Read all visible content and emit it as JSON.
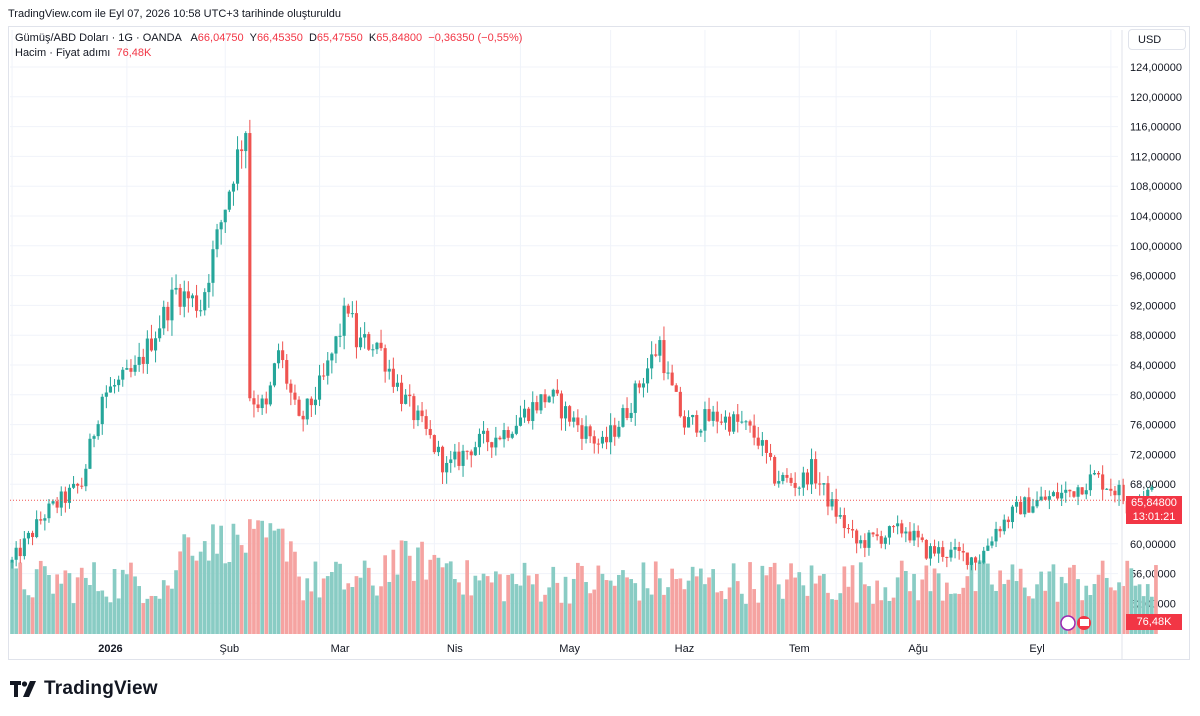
{
  "caption": "TradingView.com ile Eyl 07, 2026 10:58 UTC+3 tarihinde oluşturuldu",
  "legend": {
    "symbol": "Gümüş/ABD Doları · 1G · OANDA",
    "open_label": "A",
    "open": "66,04750",
    "high_label": "Y",
    "high": "66,45350",
    "low_label": "D",
    "low": "65,47550",
    "close_label": "K",
    "close": "65,84800",
    "change": "−0,36350 (−0,55%)",
    "volume_label": "Hacim · Fiyat adımı",
    "volume": "76,48K"
  },
  "currency": "USD",
  "price_tag": {
    "price": "65,84800",
    "countdown": "13:01:21"
  },
  "volume_tag": "76,48K",
  "brand": "TradingView",
  "colors": {
    "up": "#26a69a",
    "down": "#ef5350",
    "up_vol": "#89ccc4",
    "down_vol": "#f5a3a1",
    "grid": "#f0f3fa",
    "tag": "#f23645"
  },
  "chart_data": {
    "type": "candlestick",
    "y_axis_labels": [
      "124,00000",
      "120,00000",
      "116,00000",
      "112,00000",
      "108,00000",
      "104,00000",
      "100,00000",
      "96,00000",
      "92,00000",
      "88,00000",
      "84,00000",
      "80,00000",
      "76,00000",
      "72,00000",
      "68,00000",
      "60,00000",
      "56,00000",
      "52,00000"
    ],
    "y_axis_values": [
      124,
      120,
      116,
      112,
      108,
      104,
      100,
      96,
      92,
      88,
      84,
      80,
      76,
      72,
      68,
      60,
      56,
      52
    ],
    "x_axis_labels": [
      "2026",
      "Şub",
      "Mar",
      "Nis",
      "May",
      "Haz",
      "Tem",
      "Ağu",
      "Eyl"
    ],
    "ylim": [
      48.5,
      126.5
    ],
    "waypoints": [
      [
        0,
        57.5
      ],
      [
        8,
        64
      ],
      [
        17,
        68
      ],
      [
        22,
        80
      ],
      [
        30,
        83
      ],
      [
        40,
        94
      ],
      [
        46,
        92
      ],
      [
        54,
        110
      ],
      [
        57,
        116
      ],
      [
        58,
        80
      ],
      [
        62,
        78
      ],
      [
        65,
        86
      ],
      [
        70,
        76
      ],
      [
        76,
        82
      ],
      [
        82,
        92
      ],
      [
        84,
        87
      ],
      [
        89,
        87
      ],
      [
        95,
        80
      ],
      [
        102,
        74
      ],
      [
        106,
        70
      ],
      [
        112,
        73
      ],
      [
        120,
        75
      ],
      [
        126,
        78
      ],
      [
        131,
        80
      ],
      [
        136,
        77
      ],
      [
        144,
        73
      ],
      [
        150,
        78
      ],
      [
        158,
        87
      ],
      [
        160,
        82
      ],
      [
        164,
        76
      ],
      [
        172,
        77
      ],
      [
        178,
        76
      ],
      [
        182,
        74
      ],
      [
        186,
        69
      ],
      [
        192,
        68
      ],
      [
        195,
        70
      ],
      [
        200,
        65
      ],
      [
        206,
        60
      ],
      [
        212,
        61
      ],
      [
        218,
        62
      ],
      [
        223,
        59
      ],
      [
        226,
        59
      ],
      [
        236,
        58
      ],
      [
        240,
        62
      ],
      [
        246,
        65
      ],
      [
        252,
        66
      ],
      [
        258,
        67
      ],
      [
        264,
        69
      ],
      [
        270,
        67
      ],
      [
        272,
        65
      ],
      [
        276,
        67
      ],
      [
        279,
        66.5
      ]
    ],
    "last": {
      "open": 66.0475,
      "high": 66.4535,
      "low": 65.4755,
      "close": 65.848
    },
    "volume_bars": 280
  }
}
